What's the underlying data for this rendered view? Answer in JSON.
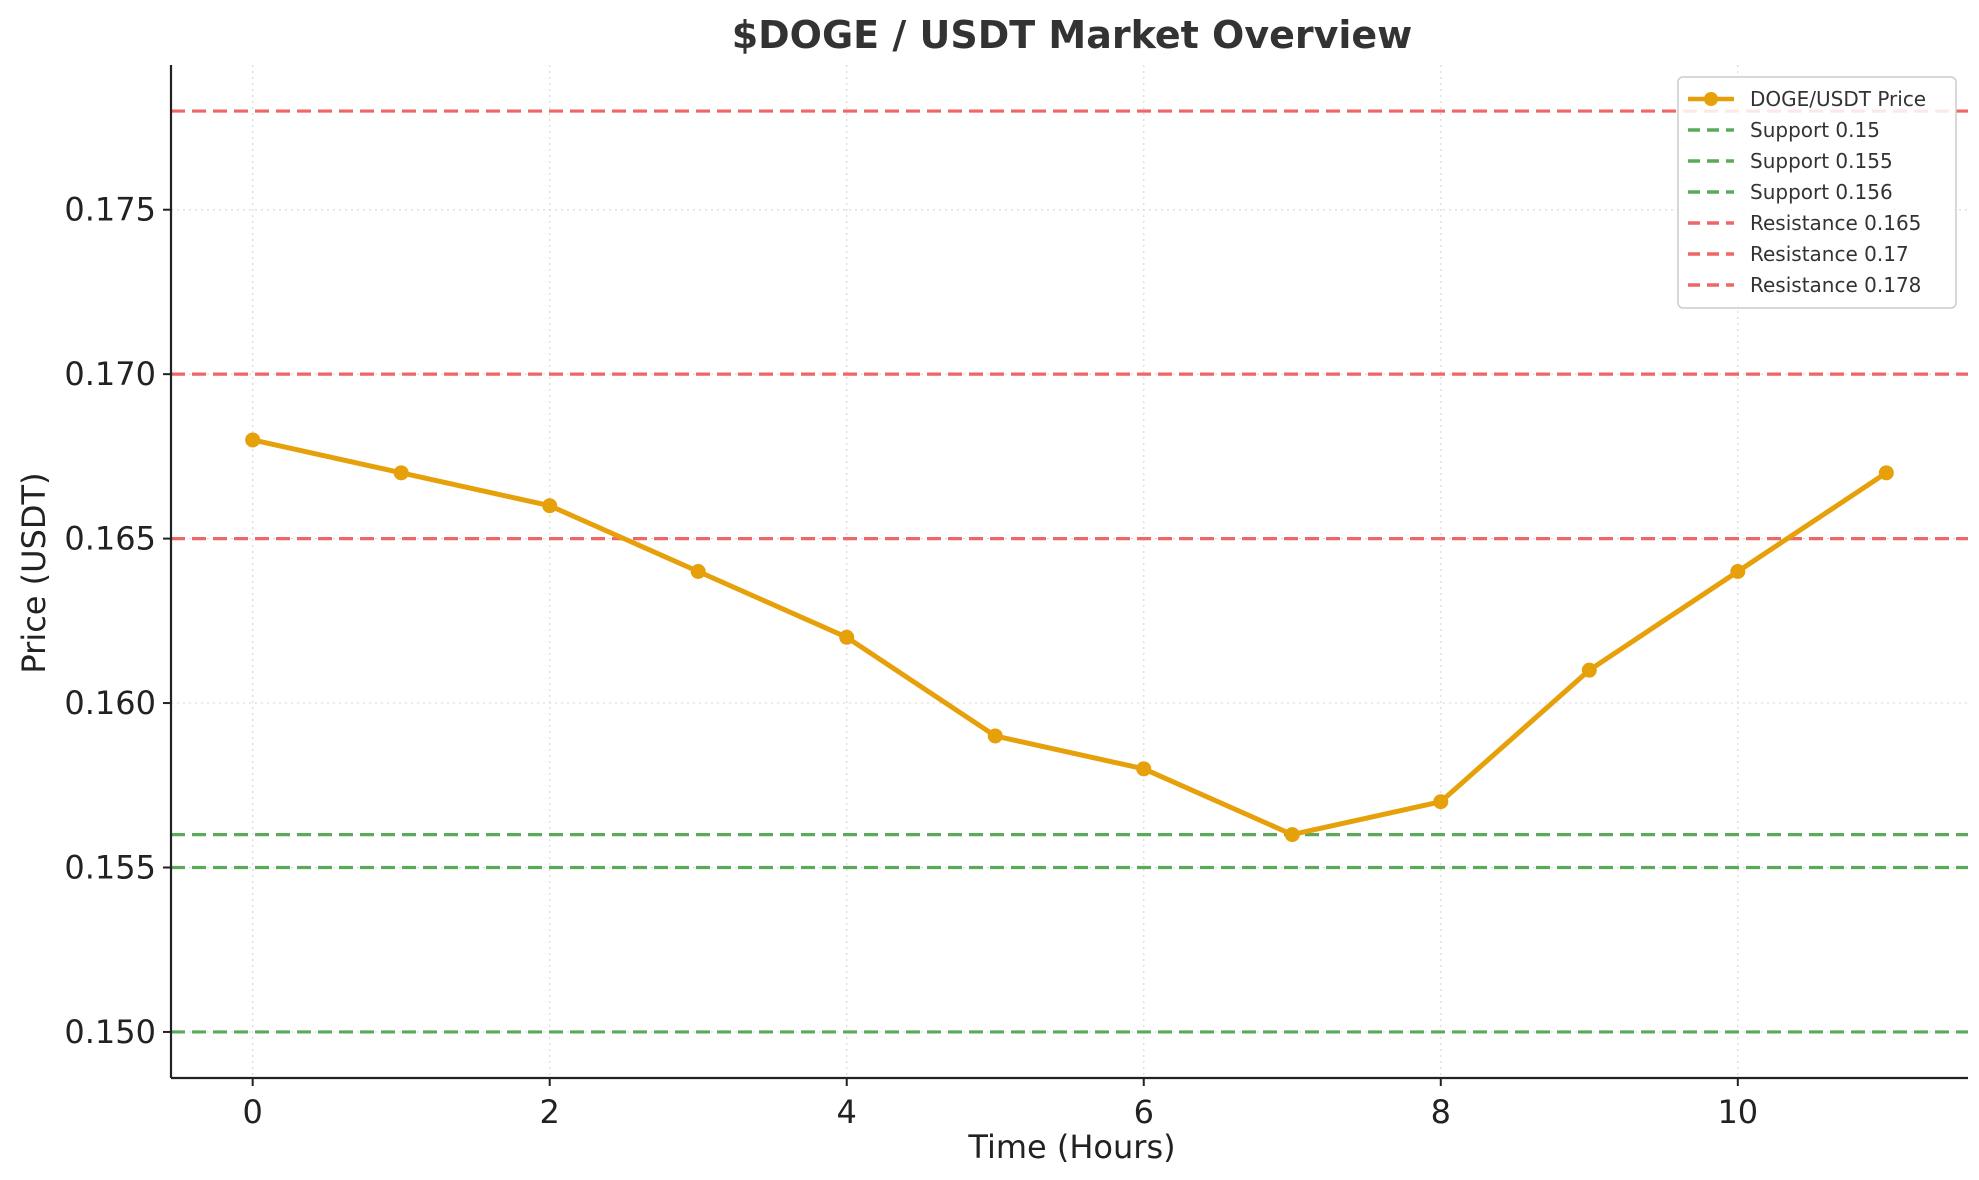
{
  "chart_data": {
    "type": "line",
    "title": "$DOGE / USDT Market Overview",
    "xlabel": "Time (Hours)",
    "ylabel": "Price (USDT)",
    "xlim": [
      -0.55,
      11.55
    ],
    "ylim": [
      0.1486,
      0.1794
    ],
    "x_ticks": [
      0,
      2,
      4,
      6,
      8,
      10
    ],
    "x_tick_labels": [
      "0",
      "2",
      "4",
      "6",
      "8",
      "10"
    ],
    "y_ticks": [
      0.15,
      0.155,
      0.16,
      0.165,
      0.17,
      0.175
    ],
    "y_tick_labels": [
      "0.150",
      "0.155",
      "0.160",
      "0.165",
      "0.170",
      "0.175"
    ],
    "grid": true,
    "legend_position": "top-right",
    "series": [
      {
        "name": "DOGE/USDT Price",
        "color": "#E6A00A",
        "marker": "circle",
        "x": [
          0,
          1,
          2,
          3,
          4,
          5,
          6,
          7,
          8,
          9,
          10,
          11
        ],
        "values": [
          0.168,
          0.167,
          0.166,
          0.164,
          0.162,
          0.159,
          0.158,
          0.156,
          0.157,
          0.161,
          0.164,
          0.167
        ]
      }
    ],
    "reference_lines": [
      {
        "name": "Support 0.15",
        "value": 0.15,
        "kind": "support",
        "color": "#5BAA5B",
        "style": "dashed"
      },
      {
        "name": "Support 0.155",
        "value": 0.155,
        "kind": "support",
        "color": "#5BAA5B",
        "style": "dashed"
      },
      {
        "name": "Support 0.156",
        "value": 0.156,
        "kind": "support",
        "color": "#5BAA5B",
        "style": "dashed"
      },
      {
        "name": "Resistance 0.165",
        "value": 0.165,
        "kind": "resistance",
        "color": "#EE6666",
        "style": "dashed"
      },
      {
        "name": "Resistance 0.17",
        "value": 0.17,
        "kind": "resistance",
        "color": "#EE6666",
        "style": "dashed"
      },
      {
        "name": "Resistance 0.178",
        "value": 0.178,
        "kind": "resistance",
        "color": "#EE6666",
        "style": "dashed"
      }
    ]
  }
}
